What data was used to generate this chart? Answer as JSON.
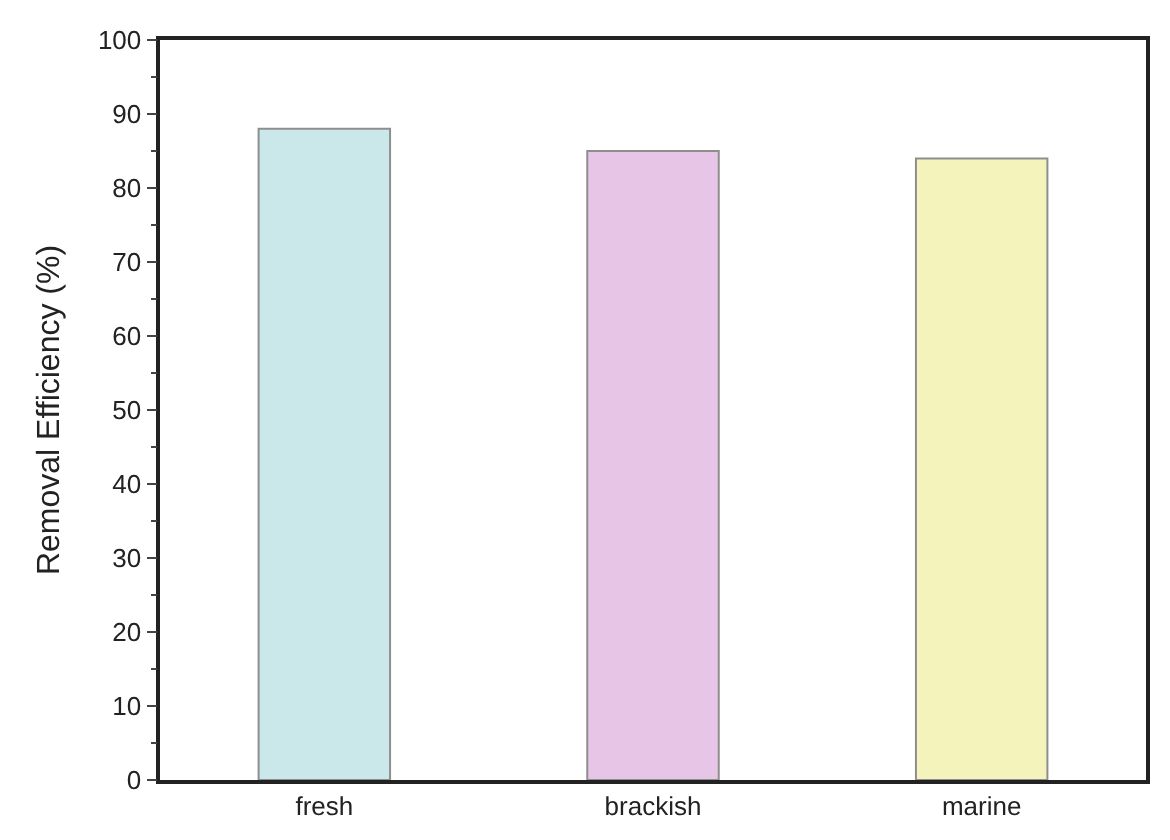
{
  "chart_data": {
    "type": "bar",
    "ylabel": "Removal Efficiency (%)",
    "categories": [
      "fresh",
      "brackish",
      "marine"
    ],
    "values": [
      88,
      85,
      84
    ],
    "colors": [
      "#a8d8dc",
      "#d8a0d8",
      "#f0ec90"
    ],
    "ylim": [
      0,
      100
    ],
    "yticks": [
      0,
      10,
      20,
      30,
      40,
      50,
      60,
      70,
      80,
      90,
      100
    ],
    "legend": false
  }
}
